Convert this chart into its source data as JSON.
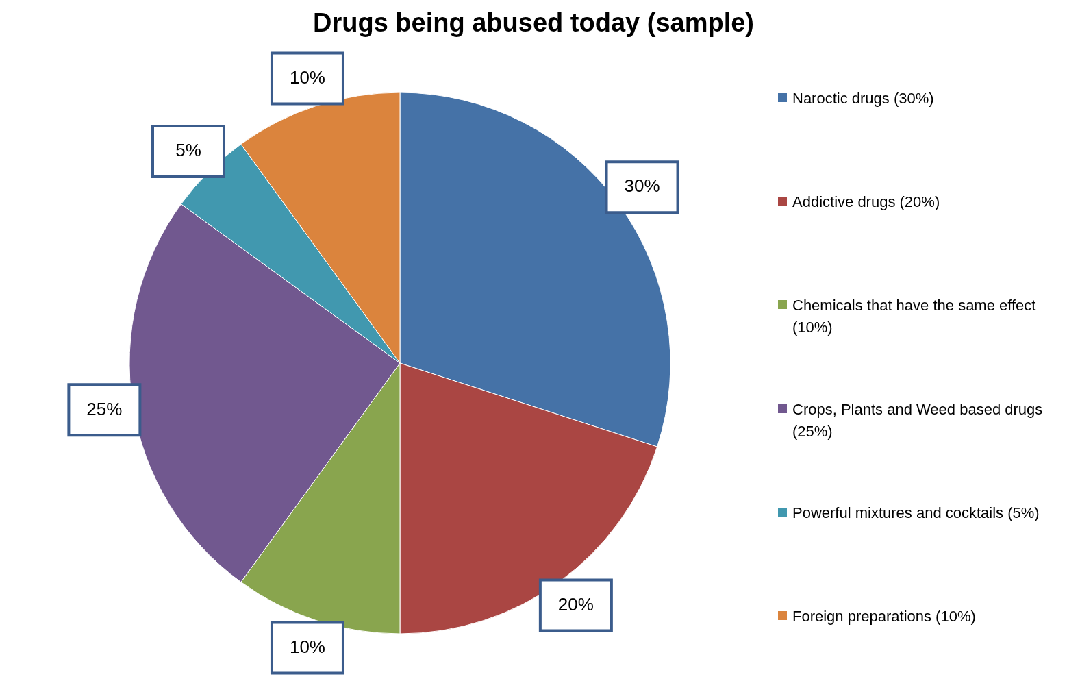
{
  "chart_data": {
    "type": "pie",
    "title": "Drugs being abused today (sample)",
    "categories": [
      "Naroctic drugs (30%)",
      "Addictive drugs (20%)",
      "Chemicals that have the same effect (10%)",
      "Crops, Plants and Weed based drugs (25%)",
      "Powerful mixtures and cocktails (5%)",
      "Foreign preparations (10%)"
    ],
    "values": [
      30,
      20,
      10,
      25,
      5,
      10
    ],
    "colors": [
      "#4572a7",
      "#aa4643",
      "#89a54e",
      "#71588f",
      "#4198af",
      "#db843d"
    ],
    "value_labels": [
      "30%",
      "20%",
      "10%",
      "25%",
      "5%",
      "10%"
    ],
    "legend": "right"
  }
}
